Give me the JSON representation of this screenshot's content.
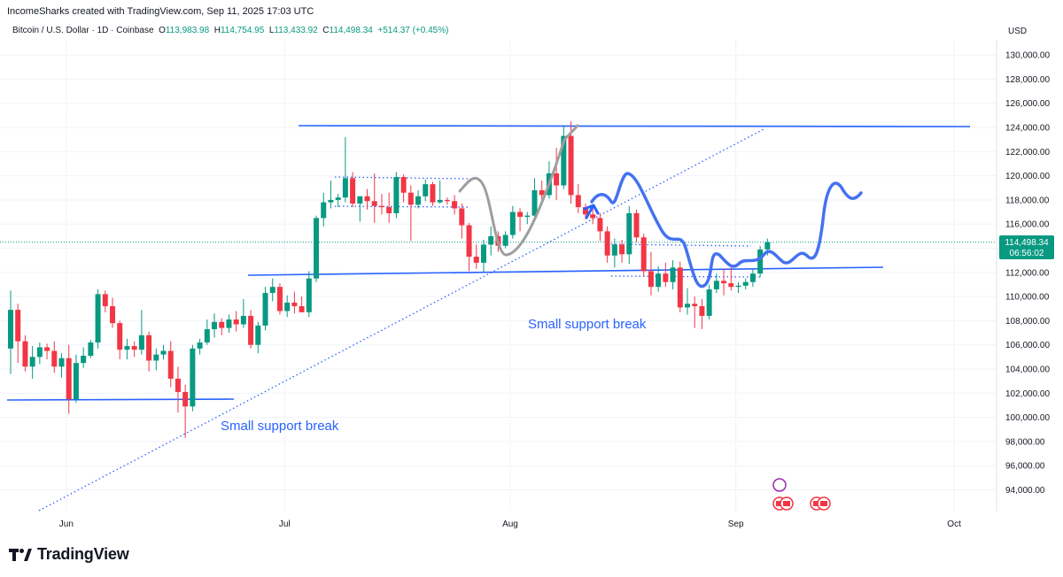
{
  "header": {
    "attribution": "IncomeSharks created with TradingView.com, Sep 11, 2025 17:03 UTC"
  },
  "symbol_bar": {
    "symbol": "Bitcoin / U.S. Dollar · 1D · Coinbase",
    "o_label": "O",
    "o_value": "113,983.98",
    "h_label": "H",
    "h_value": "114,754.95",
    "l_label": "L",
    "l_value": "113,433.92",
    "c_label": "C",
    "c_value": "114,498.34",
    "change": "+514.37 (+0.45%)"
  },
  "axis": {
    "currency": "USD"
  },
  "price_tag": {
    "value": "114,498.34",
    "countdown": "06:56:02"
  },
  "annotations": {
    "support_break_1": "Small support break",
    "support_break_2": "Small support break"
  },
  "brand": {
    "name": "TradingView"
  },
  "colors": {
    "up": "#089981",
    "down": "#f23645",
    "drawing_blue": "#2962ff",
    "annotation_text": "#2962ff",
    "projection_gray": "#9e9e9e",
    "axis_text": "#131722"
  },
  "chart_data": {
    "type": "candlestick",
    "title": "Bitcoin / U.S. Dollar · 1D · Coinbase",
    "ylabel": "USD",
    "ylim": [
      92000,
      132500
    ],
    "y_ticks": [
      94000,
      96000,
      98000,
      100000,
      102000,
      104000,
      106000,
      108000,
      110000,
      112000,
      114000,
      116000,
      118000,
      120000,
      122000,
      124000,
      126000,
      128000,
      130000
    ],
    "y_tick_labels": [
      "94,000.00",
      "96,000.00",
      "98,000.00",
      "100,000.00",
      "102,000.00",
      "104,000.00",
      "106,000.00",
      "108,000.00",
      "110,000.00",
      "112,000.00",
      "114,000.00",
      "116,000.00",
      "118,000.00",
      "120,000.00",
      "122,000.00",
      "124,000.00",
      "126,000.00",
      "128,000.00",
      "130,000.00"
    ],
    "x_ticks": [
      {
        "label": "Jun",
        "day": 4
      },
      {
        "label": "Jul",
        "day": 34
      },
      {
        "label": "Aug",
        "day": 65
      },
      {
        "label": "Sep",
        "day": 96
      },
      {
        "label": "Oct",
        "day": 126
      }
    ],
    "x_range_days": [
      0,
      136
    ],
    "candles": [
      {
        "o": 105700,
        "h": 110500,
        "l": 103600,
        "c": 108900
      },
      {
        "o": 108900,
        "h": 109400,
        "l": 104500,
        "c": 106300
      },
      {
        "o": 106300,
        "h": 106800,
        "l": 103800,
        "c": 104200
      },
      {
        "o": 104200,
        "h": 105900,
        "l": 103200,
        "c": 105000
      },
      {
        "o": 105000,
        "h": 106200,
        "l": 104400,
        "c": 105800
      },
      {
        "o": 105800,
        "h": 106100,
        "l": 104800,
        "c": 105500
      },
      {
        "o": 105500,
        "h": 106300,
        "l": 103700,
        "c": 104200
      },
      {
        "o": 104200,
        "h": 105300,
        "l": 103300,
        "c": 104900
      },
      {
        "o": 104900,
        "h": 106000,
        "l": 100300,
        "c": 101500
      },
      {
        "o": 101500,
        "h": 105200,
        "l": 101200,
        "c": 104500
      },
      {
        "o": 104500,
        "h": 105800,
        "l": 104100,
        "c": 105100
      },
      {
        "o": 105100,
        "h": 106400,
        "l": 104900,
        "c": 106200
      },
      {
        "o": 106200,
        "h": 110600,
        "l": 105700,
        "c": 110200
      },
      {
        "o": 110200,
        "h": 110500,
        "l": 108700,
        "c": 109200
      },
      {
        "o": 109200,
        "h": 109900,
        "l": 107400,
        "c": 107800
      },
      {
        "o": 107800,
        "h": 108000,
        "l": 104800,
        "c": 105600
      },
      {
        "o": 105600,
        "h": 106500,
        "l": 104800,
        "c": 105900
      },
      {
        "o": 105900,
        "h": 106300,
        "l": 105000,
        "c": 105600
      },
      {
        "o": 105600,
        "h": 108900,
        "l": 105200,
        "c": 106800
      },
      {
        "o": 106800,
        "h": 107100,
        "l": 103800,
        "c": 104700
      },
      {
        "o": 104700,
        "h": 105700,
        "l": 103900,
        "c": 105200
      },
      {
        "o": 105200,
        "h": 106000,
        "l": 104800,
        "c": 105500
      },
      {
        "o": 105500,
        "h": 106300,
        "l": 102500,
        "c": 103200
      },
      {
        "o": 103200,
        "h": 104200,
        "l": 100400,
        "c": 102100
      },
      {
        "o": 102100,
        "h": 102700,
        "l": 98300,
        "c": 100900
      },
      {
        "o": 100900,
        "h": 106000,
        "l": 100500,
        "c": 105700
      },
      {
        "o": 105700,
        "h": 106500,
        "l": 105200,
        "c": 106200
      },
      {
        "o": 106200,
        "h": 108100,
        "l": 106000,
        "c": 107300
      },
      {
        "o": 107300,
        "h": 108600,
        "l": 106600,
        "c": 107900
      },
      {
        "o": 107900,
        "h": 108200,
        "l": 106800,
        "c": 107400
      },
      {
        "o": 107400,
        "h": 108500,
        "l": 107000,
        "c": 108100
      },
      {
        "o": 108100,
        "h": 108800,
        "l": 107100,
        "c": 107700
      },
      {
        "o": 107700,
        "h": 109800,
        "l": 107400,
        "c": 108400
      },
      {
        "o": 108400,
        "h": 108900,
        "l": 105700,
        "c": 106000
      },
      {
        "o": 106000,
        "h": 107900,
        "l": 105300,
        "c": 107600
      },
      {
        "o": 107600,
        "h": 110800,
        "l": 107200,
        "c": 110300
      },
      {
        "o": 110300,
        "h": 111500,
        "l": 109600,
        "c": 110800
      },
      {
        "o": 110800,
        "h": 111100,
        "l": 108500,
        "c": 108800
      },
      {
        "o": 108800,
        "h": 110100,
        "l": 108300,
        "c": 109500
      },
      {
        "o": 109500,
        "h": 110400,
        "l": 108600,
        "c": 109200
      },
      {
        "o": 109200,
        "h": 110000,
        "l": 108700,
        "c": 108700
      },
      {
        "o": 108700,
        "h": 112100,
        "l": 108300,
        "c": 111500
      },
      {
        "o": 111500,
        "h": 116700,
        "l": 111200,
        "c": 116500
      },
      {
        "o": 116500,
        "h": 118600,
        "l": 115800,
        "c": 117800
      },
      {
        "o": 117800,
        "h": 119600,
        "l": 117300,
        "c": 118000
      },
      {
        "o": 118000,
        "h": 118500,
        "l": 117400,
        "c": 118200
      },
      {
        "o": 118200,
        "h": 123200,
        "l": 117800,
        "c": 119800
      },
      {
        "o": 119800,
        "h": 120300,
        "l": 117400,
        "c": 117700
      },
      {
        "o": 117700,
        "h": 118300,
        "l": 116200,
        "c": 118300
      },
      {
        "o": 118300,
        "h": 118900,
        "l": 117200,
        "c": 117900
      },
      {
        "o": 117900,
        "h": 120200,
        "l": 116100,
        "c": 117500
      },
      {
        "o": 117500,
        "h": 118500,
        "l": 116800,
        "c": 117400
      },
      {
        "o": 117400,
        "h": 118600,
        "l": 116100,
        "c": 116900
      },
      {
        "o": 116900,
        "h": 120300,
        "l": 116500,
        "c": 119900
      },
      {
        "o": 119900,
        "h": 120100,
        "l": 117800,
        "c": 118600
      },
      {
        "o": 118600,
        "h": 119200,
        "l": 114600,
        "c": 117600
      },
      {
        "o": 117600,
        "h": 118800,
        "l": 117300,
        "c": 118300
      },
      {
        "o": 118300,
        "h": 119700,
        "l": 117900,
        "c": 119300
      },
      {
        "o": 119300,
        "h": 119500,
        "l": 117500,
        "c": 117800
      },
      {
        "o": 117800,
        "h": 119600,
        "l": 117700,
        "c": 118000
      },
      {
        "o": 118000,
        "h": 118200,
        "l": 117600,
        "c": 117900
      },
      {
        "o": 117900,
        "h": 118400,
        "l": 116800,
        "c": 117300
      },
      {
        "o": 117300,
        "h": 117700,
        "l": 114800,
        "c": 115900
      },
      {
        "o": 115900,
        "h": 116100,
        "l": 112100,
        "c": 113300
      },
      {
        "o": 113300,
        "h": 114300,
        "l": 112300,
        "c": 112800
      },
      {
        "o": 112800,
        "h": 114700,
        "l": 112000,
        "c": 114300
      },
      {
        "o": 114300,
        "h": 115800,
        "l": 113400,
        "c": 115000
      },
      {
        "o": 115000,
        "h": 115400,
        "l": 113700,
        "c": 114200
      },
      {
        "o": 114200,
        "h": 115400,
        "l": 114000,
        "c": 115100
      },
      {
        "o": 115100,
        "h": 117500,
        "l": 114800,
        "c": 117000
      },
      {
        "o": 117000,
        "h": 117300,
        "l": 115400,
        "c": 116600
      },
      {
        "o": 116600,
        "h": 117000,
        "l": 116000,
        "c": 116700
      },
      {
        "o": 116700,
        "h": 119800,
        "l": 116500,
        "c": 118800
      },
      {
        "o": 118800,
        "h": 119600,
        "l": 117600,
        "c": 118400
      },
      {
        "o": 118400,
        "h": 121200,
        "l": 118100,
        "c": 120200
      },
      {
        "o": 120200,
        "h": 122300,
        "l": 118000,
        "c": 119200
      },
      {
        "o": 119200,
        "h": 124200,
        "l": 118900,
        "c": 123300
      },
      {
        "o": 123300,
        "h": 124500,
        "l": 117700,
        "c": 118400
      },
      {
        "o": 118400,
        "h": 119300,
        "l": 116900,
        "c": 117400
      },
      {
        "o": 117400,
        "h": 117700,
        "l": 116400,
        "c": 116800
      },
      {
        "o": 116800,
        "h": 117600,
        "l": 116000,
        "c": 116500
      },
      {
        "o": 116500,
        "h": 116900,
        "l": 114600,
        "c": 115400
      },
      {
        "o": 115400,
        "h": 115800,
        "l": 112800,
        "c": 113400
      },
      {
        "o": 113400,
        "h": 114800,
        "l": 112400,
        "c": 114300
      },
      {
        "o": 114300,
        "h": 114700,
        "l": 112800,
        "c": 113500
      },
      {
        "o": 113500,
        "h": 117500,
        "l": 112700,
        "c": 116900
      },
      {
        "o": 116900,
        "h": 117200,
        "l": 114500,
        "c": 114900
      },
      {
        "o": 114900,
        "h": 115200,
        "l": 111700,
        "c": 112100
      },
      {
        "o": 112100,
        "h": 113700,
        "l": 110100,
        "c": 110800
      },
      {
        "o": 110800,
        "h": 112500,
        "l": 110400,
        "c": 111900
      },
      {
        "o": 111900,
        "h": 112800,
        "l": 110800,
        "c": 111200
      },
      {
        "o": 111200,
        "h": 113000,
        "l": 110600,
        "c": 112400
      },
      {
        "o": 112400,
        "h": 112900,
        "l": 108700,
        "c": 109100
      },
      {
        "o": 109100,
        "h": 110700,
        "l": 108500,
        "c": 109400
      },
      {
        "o": 109400,
        "h": 110000,
        "l": 107400,
        "c": 109200
      },
      {
        "o": 109200,
        "h": 109800,
        "l": 107300,
        "c": 108400
      },
      {
        "o": 108400,
        "h": 111000,
        "l": 108100,
        "c": 110600
      },
      {
        "o": 110600,
        "h": 111900,
        "l": 110300,
        "c": 111300
      },
      {
        "o": 111300,
        "h": 112300,
        "l": 110100,
        "c": 111100
      },
      {
        "o": 111100,
        "h": 112600,
        "l": 110500,
        "c": 110800
      },
      {
        "o": 110800,
        "h": 111200,
        "l": 110300,
        "c": 110900
      },
      {
        "o": 110900,
        "h": 111500,
        "l": 110600,
        "c": 111200
      },
      {
        "o": 111200,
        "h": 112300,
        "l": 110800,
        "c": 111900
      },
      {
        "o": 111900,
        "h": 114200,
        "l": 111600,
        "c": 113900
      },
      {
        "o": 113900,
        "h": 114800,
        "l": 113400,
        "c": 114500
      }
    ]
  }
}
